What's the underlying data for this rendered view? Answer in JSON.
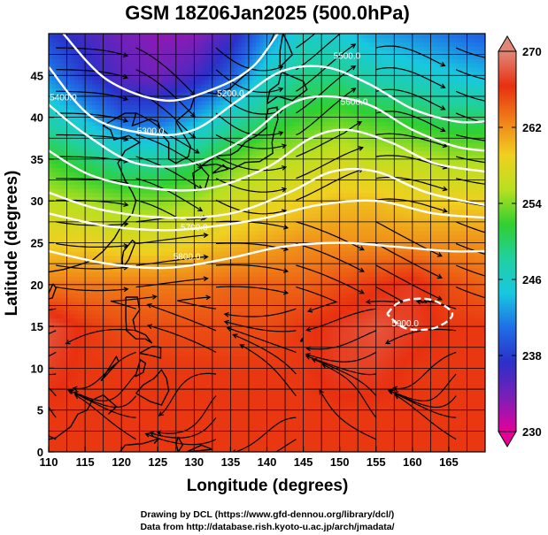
{
  "chart_data": {
    "type": "heatmap",
    "title": "GSM 18Z06Jan2025 (500.0hPa)",
    "xlabel": "Longitude (degrees)",
    "ylabel": "Latitude  (degrees)",
    "xlim": [
      110,
      170
    ],
    "ylim": [
      0,
      50
    ],
    "xticks": [
      110,
      115,
      120,
      125,
      130,
      135,
      140,
      145,
      150,
      155,
      160,
      165
    ],
    "yticks": [
      0,
      5,
      10,
      15,
      20,
      25,
      30,
      35,
      40,
      45
    ],
    "grid": true,
    "colorbar": {
      "min": 230,
      "max": 270,
      "ticks": [
        230,
        238,
        246,
        254,
        262,
        270
      ],
      "colors": [
        "#e5009a",
        "#7a1fb8",
        "#2a30c8",
        "#1f6ee6",
        "#18c8e0",
        "#20d0a0",
        "#30d030",
        "#b8e020",
        "#f0d020",
        "#f08018",
        "#e83010",
        "#e08878"
      ]
    },
    "temperature_rows": [
      {
        "lat": 50,
        "values": [
          238.0,
          236.0,
          234.0,
          233.0,
          233.0,
          236.0,
          242.0,
          246.0,
          245.0,
          243.0,
          242.0,
          241.0,
          240.0
        ]
      },
      {
        "lat": 45,
        "values": [
          242.0,
          238.0,
          235.0,
          234.0,
          236.0,
          240.0,
          246.0,
          249.0,
          249.0,
          247.0,
          246.0,
          245.0,
          244.0
        ]
      },
      {
        "lat": 40,
        "values": [
          247.0,
          244.0,
          240.0,
          240.0,
          243.0,
          247.0,
          250.0,
          252.0,
          253.0,
          252.0,
          251.0,
          250.0,
          250.0
        ]
      },
      {
        "lat": 35,
        "values": [
          252.0,
          250.0,
          248.0,
          248.0,
          250.0,
          253.0,
          255.0,
          256.0,
          257.0,
          256.0,
          256.0,
          255.0,
          255.0
        ]
      },
      {
        "lat": 30,
        "values": [
          256.0,
          255.0,
          254.0,
          254.0,
          255.0,
          257.0,
          258.0,
          259.0,
          260.0,
          260.0,
          259.0,
          259.0,
          259.0
        ]
      },
      {
        "lat": 25,
        "values": [
          259.0,
          259.0,
          258.0,
          258.0,
          259.0,
          260.0,
          261.0,
          262.0,
          262.0,
          262.0,
          262.0,
          262.0,
          262.0
        ]
      },
      {
        "lat": 20,
        "values": [
          263.0,
          263.0,
          263.0,
          263.0,
          263.0,
          264.0,
          264.0,
          264.0,
          265.0,
          266.0,
          267.0,
          265.0,
          264.0
        ]
      },
      {
        "lat": 15,
        "values": [
          268.0,
          266.0,
          265.0,
          265.0,
          265.0,
          265.0,
          265.0,
          266.0,
          267.0,
          268.0,
          267.0,
          266.0,
          266.0
        ]
      },
      {
        "lat": 10,
        "values": [
          267.0,
          266.0,
          266.0,
          266.0,
          266.0,
          266.0,
          266.0,
          266.0,
          267.0,
          267.0,
          266.0,
          266.0,
          266.0
        ]
      },
      {
        "lat": 5,
        "values": [
          266.0,
          266.0,
          266.0,
          266.0,
          266.0,
          266.0,
          266.0,
          266.0,
          266.0,
          266.0,
          266.0,
          266.0,
          266.0
        ]
      },
      {
        "lat": 0,
        "values": [
          266.0,
          266.0,
          266.0,
          266.0,
          266.0,
          266.0,
          266.0,
          266.0,
          266.0,
          266.0,
          266.0,
          266.0,
          266.0
        ]
      }
    ],
    "row_lons": [
      110,
      115,
      120,
      125,
      130,
      135,
      140,
      145,
      150,
      155,
      160,
      165,
      170
    ],
    "height_contours": [
      {
        "label": "5200.0",
        "label_lon": 135,
        "label_lat": 42.5,
        "points": [
          [
            112.0,
            50.0
          ],
          [
            118.0,
            44.5
          ],
          [
            126.0,
            42.0
          ],
          [
            133.0,
            43.5
          ],
          [
            138.0,
            46.0
          ],
          [
            141.5,
            50.0
          ]
        ]
      },
      {
        "label": "5300.0",
        "label_lon": 124,
        "label_lat": 38.0,
        "points": [
          [
            110.0,
            46.0
          ],
          [
            116.0,
            40.0
          ],
          [
            124.0,
            38.0
          ],
          [
            130.0,
            38.5
          ],
          [
            136.0,
            42.0
          ],
          [
            142.0,
            45.5
          ],
          [
            148.0,
            46.0
          ],
          [
            154.0,
            44.0
          ],
          [
            160.0,
            41.0
          ],
          [
            166.0,
            39.5
          ],
          [
            170.0,
            39.5
          ]
        ]
      },
      {
        "label": "5400.0",
        "label_lon": 112,
        "label_lat": 42.0,
        "points": [
          [
            110.0,
            41.5
          ],
          [
            115.0,
            38.0
          ],
          [
            122.0,
            34.5
          ],
          [
            130.0,
            34.5
          ],
          [
            137.0,
            37.5
          ],
          [
            143.0,
            41.5
          ],
          [
            148.0,
            42.5
          ],
          [
            154.0,
            41.5
          ],
          [
            160.0,
            38.5
          ],
          [
            166.0,
            36.5
          ],
          [
            170.0,
            36.0
          ]
        ]
      },
      {
        "label": "5500.0",
        "label_lon": 151,
        "label_lat": 47.0,
        "points": [
          [
            110.0,
            36.0
          ],
          [
            116.0,
            33.0
          ],
          [
            124.0,
            31.5
          ],
          [
            132.0,
            31.5
          ],
          [
            140.0,
            34.0
          ],
          [
            146.0,
            37.5
          ],
          [
            151.0,
            38.5
          ],
          [
            157.0,
            37.0
          ],
          [
            163.0,
            34.5
          ],
          [
            170.0,
            33.5
          ]
        ]
      },
      {
        "label": "5600.0",
        "label_lon": 152,
        "label_lat": 41.5,
        "points": [
          [
            110.0,
            31.0
          ],
          [
            117.0,
            29.0
          ],
          [
            126.0,
            28.0
          ],
          [
            135.0,
            28.5
          ],
          [
            143.0,
            31.0
          ],
          [
            149.0,
            33.5
          ],
          [
            155.0,
            33.5
          ],
          [
            162.0,
            31.0
          ],
          [
            170.0,
            29.5
          ]
        ]
      },
      {
        "label": "5700.0",
        "label_lon": 130,
        "label_lat": 26.5,
        "points": [
          [
            110.0,
            28.5
          ],
          [
            118.0,
            27.0
          ],
          [
            126.0,
            26.5
          ],
          [
            133.0,
            27.0
          ],
          [
            140.0,
            28.0
          ],
          [
            147.0,
            29.5
          ],
          [
            155.0,
            30.0
          ],
          [
            163.0,
            28.5
          ],
          [
            170.0,
            28.0
          ]
        ]
      },
      {
        "label": "5800.0",
        "label_lon": 129,
        "label_lat": 23.0,
        "points": [
          [
            110.0,
            24.0
          ],
          [
            118.0,
            22.5
          ],
          [
            126.0,
            22.0
          ],
          [
            134.0,
            23.0
          ],
          [
            142.0,
            24.5
          ],
          [
            150.0,
            25.0
          ],
          [
            158.0,
            24.5
          ],
          [
            165.0,
            24.0
          ],
          [
            170.0,
            24.0
          ]
        ]
      },
      {
        "label": "5900.0",
        "label_lon": 159,
        "label_lat": 15.0,
        "points": [
          [
            156.5,
            16.5
          ],
          [
            158.5,
            18.0
          ],
          [
            162.5,
            18.2
          ],
          [
            165.5,
            16.5
          ],
          [
            163.0,
            14.8
          ],
          [
            159.0,
            14.8
          ],
          [
            156.5,
            16.5
          ]
        ]
      }
    ]
  },
  "credits": {
    "drawing": "Drawing by DCL (https://www.gfd-dennou.org/library/dcl/)",
    "data": "Data from http://database.rish.kyoto-u.ac.jp/arch/jmadata/"
  }
}
